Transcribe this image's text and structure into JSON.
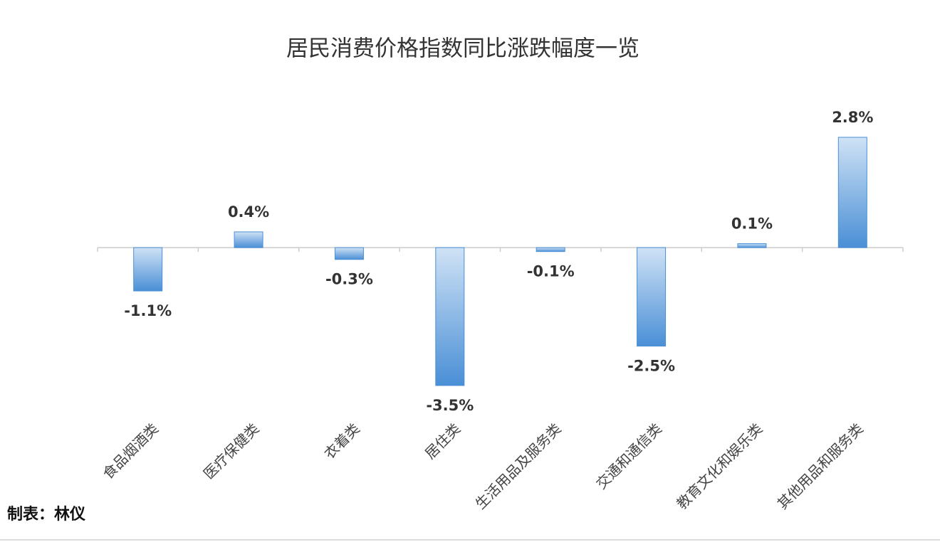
{
  "chart_data": {
    "type": "bar",
    "title": "居民消费价格指数同比涨跌幅度一览",
    "categories": [
      "食品烟酒类",
      "医疗保健类",
      "衣着类",
      "居住类",
      "生活用品及服务类",
      "交通和通信类",
      "教育文化和娱乐类",
      "其他用品和服务类"
    ],
    "values": [
      -1.1,
      0.4,
      -0.3,
      -3.5,
      -0.1,
      -2.5,
      0.1,
      2.8
    ],
    "value_labels": [
      "-1.1%",
      "0.4%",
      "-0.3%",
      "-3.5%",
      "-0.1%",
      "-2.5%",
      "0.1%",
      "2.8%"
    ],
    "color": "#4a8fd6",
    "footer": "制表：林仪"
  }
}
